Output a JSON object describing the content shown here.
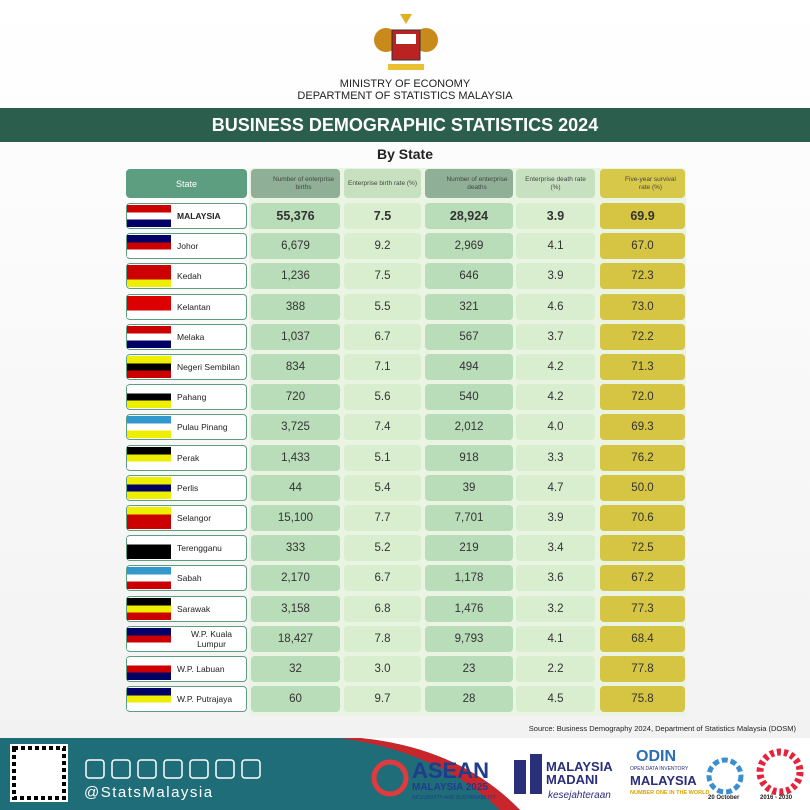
{
  "header": {
    "ministry": "MINISTRY OF ECONOMY",
    "department": "DEPARTMENT OF STATISTICS MALAYSIA",
    "title": "BUSINESS DEMOGRAPHIC STATISTICS 2024",
    "subtitle": "By State"
  },
  "table": {
    "columns": [
      "State",
      "Number of enterprise births",
      "Enterprise birth rate (%)",
      "Number of enterprise deaths",
      "Enterprise death rate (%)",
      "Five-year survival rate (%)"
    ],
    "rows": [
      [
        "MALAYSIA",
        "55,376",
        "7.5",
        "28,924",
        "3.9",
        "69.9"
      ],
      [
        "Johor",
        "6,679",
        "9.2",
        "2,969",
        "4.1",
        "67.0"
      ],
      [
        "Kedah",
        "1,236",
        "7.5",
        "646",
        "3.9",
        "72.3"
      ],
      [
        "Kelantan",
        "388",
        "5.5",
        "321",
        "4.6",
        "73.0"
      ],
      [
        "Melaka",
        "1,037",
        "6.7",
        "567",
        "3.7",
        "72.2"
      ],
      [
        "Negeri Sembilan",
        "834",
        "7.1",
        "494",
        "4.2",
        "71.3"
      ],
      [
        "Pahang",
        "720",
        "5.6",
        "540",
        "4.2",
        "72.0"
      ],
      [
        "Pulau Pinang",
        "3,725",
        "7.4",
        "2,012",
        "4.0",
        "69.3"
      ],
      [
        "Perak",
        "1,433",
        "5.1",
        "918",
        "3.3",
        "76.2"
      ],
      [
        "Perlis",
        "44",
        "5.4",
        "39",
        "4.7",
        "50.0"
      ],
      [
        "Selangor",
        "15,100",
        "7.7",
        "7,701",
        "3.9",
        "70.6"
      ],
      [
        "Terengganu",
        "333",
        "5.2",
        "219",
        "3.4",
        "72.5"
      ],
      [
        "Sabah",
        "2,170",
        "6.7",
        "1,178",
        "3.6",
        "67.2"
      ],
      [
        "Sarawak",
        "3,158",
        "6.8",
        "1,476",
        "3.2",
        "77.3"
      ],
      [
        "W.P. Kuala Lumpur",
        "18,427",
        "7.8",
        "9,793",
        "4.1",
        "68.4"
      ],
      [
        "W.P. Labuan",
        "32",
        "3.0",
        "23",
        "2.2",
        "77.8"
      ],
      [
        "W.P. Putrajaya",
        "60",
        "9.7",
        "28",
        "4.5",
        "75.8"
      ]
    ]
  },
  "source": "Source: Business Demography 2024, Department of Statistics Malaysia (DOSM)",
  "footer": {
    "handle": "@StatsMalaysia",
    "asean": "ASEAN",
    "asean_sub": "MALAYSIA 2025",
    "asean_tag": "INCLUSIVITY AND SUSTAINABILITY",
    "madani": "MALAYSIA MADANI",
    "madani_tag": "kesejahteraan",
    "odin": "ODIN",
    "odin_sub": "OPEN DATA INVENTORY",
    "odin_country": "MALAYSIA",
    "odin_tag": "NUMBER ONE IN THE WORLD",
    "date": "20 October",
    "years": "2016 - 2030"
  }
}
